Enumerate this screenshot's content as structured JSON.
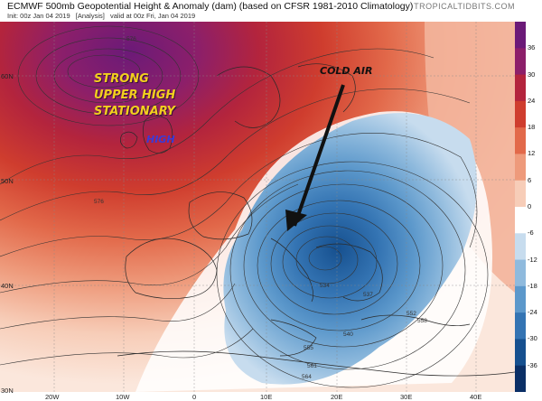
{
  "header": {
    "title": "ECMWF 500mb Geopotential Height & Anomaly (dam) (based on CFSR 1981-2010 Climatology)",
    "init": "Init: 00z Jan 04 2019",
    "analysis": "[Analysis]",
    "valid": "valid at 00z Fri, Jan 04 2019",
    "site": "TROPICALTIDBITS.COM"
  },
  "map": {
    "lat_labels": [
      "60N",
      "50N",
      "40N",
      "30N"
    ],
    "lon_labels": [
      "20W",
      "10W",
      "0",
      "10E",
      "20E",
      "30E",
      "40E"
    ],
    "annotations": {
      "strong": "STRONG",
      "upper_high": "UPPER HIGH",
      "stationary": "STATIONARY",
      "high": "HIGH",
      "cold_air": "COLD AIR"
    },
    "contour_labels": [
      "576",
      "576",
      "534",
      "537",
      "540",
      "552",
      "555",
      "558",
      "561",
      "564"
    ]
  },
  "colorbar": {
    "labels": [
      "36",
      "30",
      "24",
      "18",
      "12",
      "6",
      "0",
      "-6",
      "-12",
      "-18",
      "-24",
      "-30",
      "-36"
    ],
    "colors": [
      "#6b1a78",
      "#8c1f6a",
      "#b3243d",
      "#cf3d2e",
      "#e2694a",
      "#ee9a7b",
      "#f7cdb8",
      "#ffffff",
      "#c7dcee",
      "#8fbadd",
      "#5c98cb",
      "#3474b3",
      "#16508f",
      "#0b2f66"
    ]
  }
}
